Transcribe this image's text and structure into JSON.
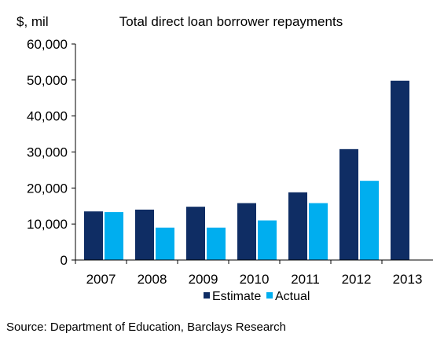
{
  "chart_data": {
    "type": "bar",
    "title": "Total direct loan borrower repayments",
    "ylabel": "$, mil",
    "xlabel": "",
    "categories": [
      "2007",
      "2008",
      "2009",
      "2010",
      "2011",
      "2012",
      "2013"
    ],
    "series": [
      {
        "name": "Estimate",
        "color": "#0f2d64",
        "values": [
          13500,
          14000,
          14800,
          15800,
          18800,
          30800,
          49800
        ]
      },
      {
        "name": "Actual",
        "color": "#00aeef",
        "values": [
          13300,
          9000,
          9000,
          11000,
          15800,
          22000,
          null
        ]
      }
    ],
    "ylim": [
      0,
      60000
    ],
    "yticks": [
      "0",
      "10,000",
      "20,000",
      "30,000",
      "40,000",
      "50,000",
      "60,000"
    ],
    "ytick_values": [
      0,
      10000,
      20000,
      30000,
      40000,
      50000,
      60000
    ],
    "grid": false,
    "legend_position": "bottom-center"
  },
  "source": "Source: Department of Education, Barclays Research"
}
